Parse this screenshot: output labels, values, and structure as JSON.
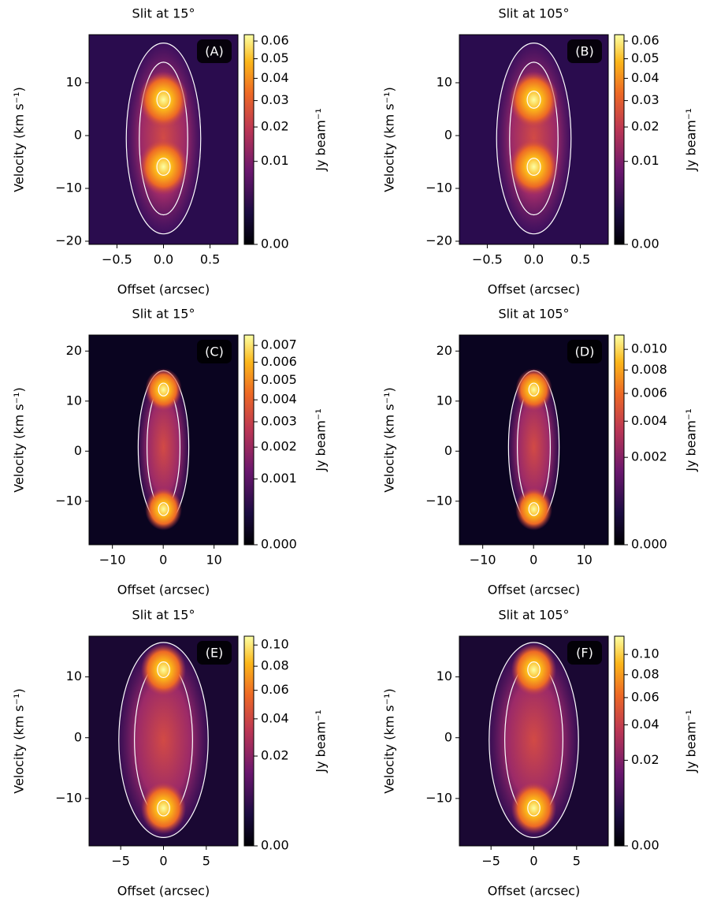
{
  "chart_data": [
    {
      "type": "heatmap",
      "title": "Slit at 15°",
      "panel_label": "(A)",
      "xlabel": "Offset (arcsec)",
      "ylabel": "Velocity (km s⁻¹)",
      "colorbar_label": "Jy beam⁻¹",
      "colormap": "inferno",
      "xlim": [
        -0.8,
        0.8
      ],
      "xticks": [
        {
          "value": -0.5,
          "label": "−0.5"
        },
        {
          "value": 0,
          "label": "0.0"
        },
        0.5
      ],
      "ylim": [
        -20.6,
        19.1
      ],
      "yticks": [
        {
          "value": -20,
          "label": "−20"
        },
        {
          "value": -10,
          "label": "−10"
        },
        0,
        10
      ],
      "clim": [
        0,
        0.0638
      ],
      "color_gamma": 0.5,
      "cticks": [
        {
          "value": 0,
          "label": "0.00"
        },
        0.01,
        0.02,
        0.03,
        0.04,
        0.05,
        0.06
      ]
    },
    {
      "type": "heatmap",
      "title": "Slit at 105°",
      "panel_label": "(B)",
      "xlabel": "Offset (arcsec)",
      "ylabel": "Velocity (km s⁻¹)",
      "colorbar_label": "Jy beam⁻¹",
      "colormap": "inferno",
      "xlim": [
        -0.8,
        0.8
      ],
      "xticks": [
        {
          "value": -0.5,
          "label": "−0.5"
        },
        {
          "value": 0,
          "label": "0.0"
        },
        0.5
      ],
      "ylim": [
        -20.6,
        19.1
      ],
      "yticks": [
        {
          "value": -20,
          "label": "−20"
        },
        {
          "value": -10,
          "label": "−10"
        },
        0,
        10
      ],
      "clim": [
        0,
        0.0638
      ],
      "color_gamma": 0.5,
      "cticks": [
        {
          "value": 0,
          "label": "0.00"
        },
        0.01,
        0.02,
        0.03,
        0.04,
        0.05,
        0.06
      ]
    },
    {
      "type": "heatmap",
      "title": "Slit at 15°",
      "panel_label": "(C)",
      "xlabel": "Offset (arcsec)",
      "ylabel": "Velocity (km s⁻¹)",
      "colorbar_label": "Jy beam⁻¹",
      "colormap": "inferno",
      "xlim": [
        -14.6,
        14.7
      ],
      "xticks": [
        {
          "value": -10,
          "label": "−10"
        },
        0,
        10
      ],
      "ylim": [
        -18.7,
        23.2
      ],
      "yticks": [
        {
          "value": -10,
          "label": "−10"
        },
        0,
        10,
        20
      ],
      "clim": [
        0,
        0.00765
      ],
      "color_gamma": 0.57,
      "cticks": [
        {
          "value": 0,
          "label": "0.000"
        },
        0.001,
        0.002,
        0.003,
        0.004,
        0.005,
        0.006,
        0.007
      ]
    },
    {
      "type": "heatmap",
      "title": "Slit at 105°",
      "panel_label": "(D)",
      "xlabel": "Offset (arcsec)",
      "ylabel": "Velocity (km s⁻¹)",
      "colorbar_label": "Jy beam⁻¹",
      "colormap": "inferno",
      "xlim": [
        -14.6,
        14.7
      ],
      "xticks": [
        {
          "value": -10,
          "label": "−10"
        },
        0,
        10
      ],
      "ylim": [
        -18.7,
        23.2
      ],
      "yticks": [
        {
          "value": -10,
          "label": "−10"
        },
        0,
        10,
        20
      ],
      "clim": [
        0,
        0.01152
      ],
      "color_gamma": 0.5,
      "cticks": [
        {
          "value": 0,
          "label": "0.000"
        },
        0.002,
        0.004,
        0.006,
        0.008,
        {
          "value": 0.01,
          "label": "0.010"
        }
      ]
    },
    {
      "type": "heatmap",
      "title": "Slit at 15°",
      "panel_label": "(E)",
      "xlabel": "Offset (arcsec)",
      "ylabel": "Velocity (km s⁻¹)",
      "colorbar_label": "Jy beam⁻¹",
      "colormap": "inferno",
      "xlim": [
        -8.7,
        8.7
      ],
      "xticks": [
        {
          "value": -5,
          "label": "−5"
        },
        0,
        5
      ],
      "ylim": [
        -17.8,
        16.7
      ],
      "yticks": [
        {
          "value": -10,
          "label": "−10"
        },
        0,
        10
      ],
      "clim": [
        0,
        0.109
      ],
      "color_gamma": 0.5,
      "cticks": [
        {
          "value": 0,
          "label": "0.00"
        },
        0.02,
        0.04,
        0.06,
        0.08,
        {
          "value": 0.1,
          "label": "0.10"
        }
      ]
    },
    {
      "type": "heatmap",
      "title": "Slit at 105°",
      "panel_label": "(F)",
      "xlabel": "Offset (arcsec)",
      "ylabel": "Velocity (km s⁻¹)",
      "colorbar_label": "Jy beam⁻¹",
      "colormap": "inferno",
      "xlim": [
        -8.7,
        8.7
      ],
      "xticks": [
        {
          "value": -5,
          "label": "−5"
        },
        0,
        5
      ],
      "ylim": [
        -17.8,
        16.7
      ],
      "yticks": [
        {
          "value": -10,
          "label": "−10"
        },
        0,
        10
      ],
      "clim": [
        0,
        0.12
      ],
      "color_gamma": 0.5,
      "cticks": [
        {
          "value": 0,
          "label": "0.00"
        },
        0.02,
        0.04,
        0.06,
        0.08,
        {
          "value": 0.1,
          "label": "0.10"
        }
      ]
    }
  ]
}
